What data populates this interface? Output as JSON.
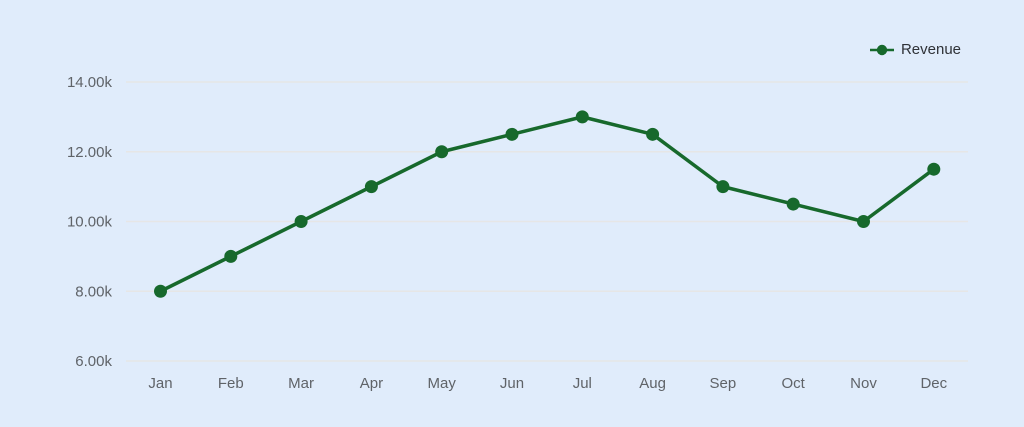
{
  "chart_data": {
    "type": "line",
    "title": "",
    "xlabel": "",
    "ylabel": "",
    "categories": [
      "Jan",
      "Feb",
      "Mar",
      "Apr",
      "May",
      "Jun",
      "Jul",
      "Aug",
      "Sep",
      "Oct",
      "Nov",
      "Dec"
    ],
    "series": [
      {
        "name": "Revenue",
        "values": [
          8000,
          9000,
          10000,
          11000,
          12000,
          12500,
          13000,
          12500,
          11000,
          10500,
          10000,
          11500
        ],
        "color": "#17692c"
      }
    ],
    "ylim": [
      6000,
      14000
    ],
    "ytick_step": 2000,
    "ytick_labels": [
      "6.00k",
      "8.00k",
      "10.00k",
      "12.00k",
      "14.00k"
    ],
    "grid": true,
    "legend_position": "top-right"
  },
  "colors": {
    "background": "#e0ecfb",
    "line": "#17692c",
    "grid": "#e6e6e6",
    "tick_text": "#5f6368",
    "legend_text": "#2f3237"
  }
}
